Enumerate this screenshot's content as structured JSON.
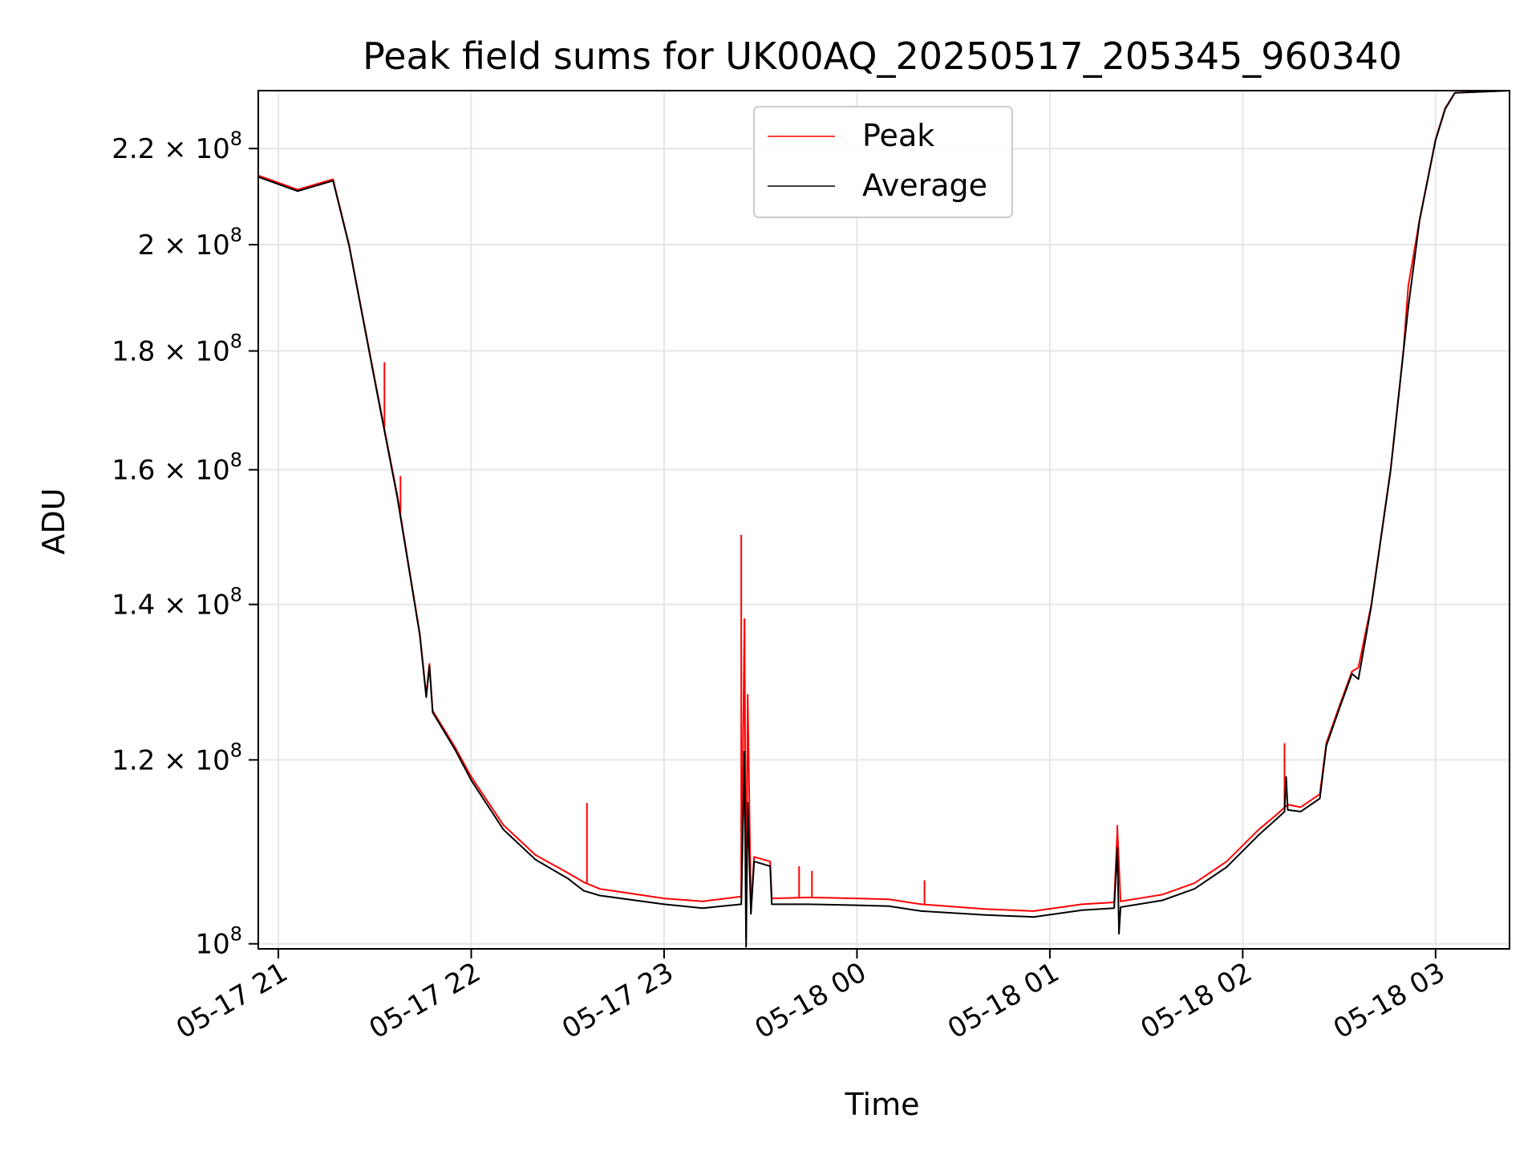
{
  "chart_data": {
    "type": "line",
    "title": "Peak field sums for UK00AQ_20250517_205345_960340",
    "xlabel": "Time",
    "ylabel": "ADU",
    "x_tick_labels": [
      "05-17 21",
      "05-17 22",
      "05-17 23",
      "05-18 00",
      "05-18 01",
      "05-18 02",
      "05-18 03"
    ],
    "x_tick_values": [
      "2025-05-17 21:00",
      "2025-05-17 22:00",
      "2025-05-17 23:00",
      "2025-05-18 00:00",
      "2025-05-18 01:00",
      "2025-05-18 02:00",
      "2025-05-18 03:00"
    ],
    "xlim": [
      "2025-05-17 20:53:45",
      "2025-05-18 03:23:00"
    ],
    "y_scale": "log",
    "ylim": [
      99500000,
      233000000
    ],
    "y_ticks": [
      {
        "value": 100000000,
        "mant": "10",
        "exp": "8"
      },
      {
        "value": 120000000,
        "mant": "1.2 × 10",
        "exp": "8"
      },
      {
        "value": 140000000,
        "mant": "1.4 × 10",
        "exp": "8"
      },
      {
        "value": 160000000,
        "mant": "1.6 × 10",
        "exp": "8"
      },
      {
        "value": 180000000,
        "mant": "1.8 × 10",
        "exp": "8"
      },
      {
        "value": 200000000,
        "mant": "2 × 10",
        "exp": "8"
      },
      {
        "value": 220000000,
        "mant": "2.2 × 10",
        "exp": "8"
      }
    ],
    "grid": true,
    "legend": "upper center",
    "series": [
      {
        "name": "Peak",
        "color": "#ff0000",
        "points": [
          [
            "2025-05-17 20:53:45",
            214200000
          ],
          [
            "2025-05-17 21:06:00",
            211200000
          ],
          [
            "2025-05-17 21:17:00",
            213400000
          ],
          [
            "2025-05-17 21:22:00",
            200000000
          ],
          [
            "2025-05-17 21:30:00",
            175000000
          ],
          [
            "2025-05-17 21:37:00",
            156000000
          ],
          [
            "2025-05-17 21:44:00",
            136000000
          ],
          [
            "2025-05-17 21:46:00",
            128000000
          ],
          [
            "2025-05-17 21:47:00",
            132000000
          ],
          [
            "2025-05-17 21:48:00",
            126000000
          ],
          [
            "2025-05-17 21:55:00",
            121500000
          ],
          [
            "2025-05-17 22:00:00",
            118000000
          ],
          [
            "2025-05-17 22:10:00",
            112500000
          ],
          [
            "2025-05-17 22:20:00",
            109200000
          ],
          [
            "2025-05-17 22:30:00",
            107300000
          ],
          [
            "2025-05-17 22:35:00",
            106300000
          ],
          [
            "2025-05-17 22:40:00",
            105600000
          ],
          [
            "2025-05-17 23:00:00",
            104600000
          ],
          [
            "2025-05-17 23:12:00",
            104300000
          ],
          [
            "2025-05-17 23:24:00",
            104800000
          ],
          [
            "2025-05-17 23:25:00",
            138000000
          ],
          [
            "2025-05-17 23:25:30",
            100500000
          ],
          [
            "2025-05-17 23:26:00",
            128000000
          ],
          [
            "2025-05-17 23:27:00",
            103500000
          ],
          [
            "2025-05-17 23:28:00",
            109000000
          ],
          [
            "2025-05-17 23:33:00",
            108500000
          ],
          [
            "2025-05-17 23:33:30",
            104600000
          ],
          [
            "2025-05-17 23:45:00",
            104700000
          ],
          [
            "2025-05-18 00:00:00",
            104600000
          ],
          [
            "2025-05-18 00:10:00",
            104500000
          ],
          [
            "2025-05-18 00:20:00",
            104000000
          ],
          [
            "2025-05-18 00:40:00",
            103500000
          ],
          [
            "2025-05-18 00:55:00",
            103300000
          ],
          [
            "2025-05-18 01:10:00",
            104000000
          ],
          [
            "2025-05-18 01:20:00",
            104200000
          ],
          [
            "2025-05-18 01:21:00",
            112000000
          ],
          [
            "2025-05-18 01:22:00",
            104300000
          ],
          [
            "2025-05-18 01:35:00",
            105000000
          ],
          [
            "2025-05-18 01:45:00",
            106200000
          ],
          [
            "2025-05-18 01:55:00",
            108500000
          ],
          [
            "2025-05-18 02:05:00",
            112000000
          ],
          [
            "2025-05-18 02:10:00",
            113500000
          ],
          [
            "2025-05-18 02:14:00",
            114800000
          ],
          [
            "2025-05-18 02:18:00",
            114500000
          ],
          [
            "2025-05-18 02:24:00",
            116000000
          ],
          [
            "2025-05-18 02:26:00",
            122000000
          ],
          [
            "2025-05-18 02:30:00",
            126500000
          ],
          [
            "2025-05-18 02:34:00",
            131000000
          ],
          [
            "2025-05-18 02:36:00",
            131500000
          ],
          [
            "2025-05-18 02:40:00",
            140000000
          ],
          [
            "2025-05-18 02:46:00",
            160000000
          ],
          [
            "2025-05-18 02:50:00",
            180000000
          ],
          [
            "2025-05-18 02:51:30",
            192000000
          ],
          [
            "2025-05-18 02:55:00",
            205000000
          ],
          [
            "2025-05-18 03:00:00",
            222000000
          ],
          [
            "2025-05-18 03:03:00",
            229000000
          ],
          [
            "2025-05-18 03:06:00",
            232500000
          ],
          [
            "2025-05-18 03:23:00",
            233000000
          ]
        ],
        "spikes": [
          [
            "2025-05-17 21:33:00",
            178000000
          ],
          [
            "2025-05-17 21:38:00",
            159000000
          ],
          [
            "2025-05-17 22:36:00",
            115000000
          ],
          [
            "2025-05-17 23:24:00",
            150000000
          ],
          [
            "2025-05-17 23:25:00",
            125000000
          ],
          [
            "2025-05-17 23:42:00",
            108000000
          ],
          [
            "2025-05-17 23:46:00",
            107500000
          ],
          [
            "2025-05-18 00:21:00",
            106500000
          ],
          [
            "2025-05-18 01:21:00",
            112500000
          ],
          [
            "2025-05-18 02:13:00",
            122000000
          ]
        ]
      },
      {
        "name": "Average",
        "color": "#000000",
        "points": [
          [
            "2025-05-17 20:53:45",
            213900000
          ],
          [
            "2025-05-17 21:06:00",
            210900000
          ],
          [
            "2025-05-17 21:17:00",
            213100000
          ],
          [
            "2025-05-17 21:22:00",
            199800000
          ],
          [
            "2025-05-17 21:30:00",
            174700000
          ],
          [
            "2025-05-17 21:37:00",
            155700000
          ],
          [
            "2025-05-17 21:44:00",
            135800000
          ],
          [
            "2025-05-17 21:46:00",
            127700000
          ],
          [
            "2025-05-17 21:47:00",
            131700000
          ],
          [
            "2025-05-17 21:48:00",
            125800000
          ],
          [
            "2025-05-17 21:55:00",
            121200000
          ],
          [
            "2025-05-17 22:00:00",
            117600000
          ],
          [
            "2025-05-17 22:10:00",
            112000000
          ],
          [
            "2025-05-17 22:20:00",
            108700000
          ],
          [
            "2025-05-17 22:30:00",
            106700000
          ],
          [
            "2025-05-17 22:35:00",
            105400000
          ],
          [
            "2025-05-17 22:40:00",
            104900000
          ],
          [
            "2025-05-17 23:00:00",
            104000000
          ],
          [
            "2025-05-17 23:12:00",
            103600000
          ],
          [
            "2025-05-17 23:24:00",
            104000000
          ],
          [
            "2025-05-17 23:25:00",
            121000000
          ],
          [
            "2025-05-17 23:25:30",
            99700000
          ],
          [
            "2025-05-17 23:26:00",
            115000000
          ],
          [
            "2025-05-17 23:27:00",
            103000000
          ],
          [
            "2025-05-17 23:28:00",
            108500000
          ],
          [
            "2025-05-17 23:33:00",
            108000000
          ],
          [
            "2025-05-17 23:33:30",
            104000000
          ],
          [
            "2025-05-17 23:45:00",
            104000000
          ],
          [
            "2025-05-18 00:00:00",
            103900000
          ],
          [
            "2025-05-18 00:10:00",
            103800000
          ],
          [
            "2025-05-18 00:20:00",
            103300000
          ],
          [
            "2025-05-18 00:40:00",
            102900000
          ],
          [
            "2025-05-18 00:55:00",
            102700000
          ],
          [
            "2025-05-18 01:10:00",
            103400000
          ],
          [
            "2025-05-18 01:20:00",
            103600000
          ],
          [
            "2025-05-18 01:21:00",
            110000000
          ],
          [
            "2025-05-18 01:21:30",
            101000000
          ],
          [
            "2025-05-18 01:22:00",
            103700000
          ],
          [
            "2025-05-18 01:35:00",
            104400000
          ],
          [
            "2025-05-18 01:45:00",
            105600000
          ],
          [
            "2025-05-18 01:55:00",
            107900000
          ],
          [
            "2025-05-18 02:05:00",
            111400000
          ],
          [
            "2025-05-18 02:10:00",
            113000000
          ],
          [
            "2025-05-18 02:13:00",
            114000000
          ],
          [
            "2025-05-18 02:13:30",
            118000000
          ],
          [
            "2025-05-18 02:14:00",
            114200000
          ],
          [
            "2025-05-18 02:18:00",
            114000000
          ],
          [
            "2025-05-18 02:24:00",
            115500000
          ],
          [
            "2025-05-18 02:26:00",
            121700000
          ],
          [
            "2025-05-18 02:30:00",
            126200000
          ],
          [
            "2025-05-18 02:34:00",
            130700000
          ],
          [
            "2025-05-18 02:36:00",
            130000000
          ],
          [
            "2025-05-18 02:40:00",
            139800000
          ],
          [
            "2025-05-18 02:46:00",
            159800000
          ],
          [
            "2025-05-18 02:50:00",
            179800000
          ],
          [
            "2025-05-18 02:51:30",
            188000000
          ],
          [
            "2025-05-18 02:55:00",
            204800000
          ],
          [
            "2025-05-18 03:00:00",
            221800000
          ],
          [
            "2025-05-18 03:03:00",
            228800000
          ],
          [
            "2025-05-18 03:06:00",
            232500000
          ],
          [
            "2025-05-18 03:23:00",
            233000000
          ]
        ]
      }
    ]
  }
}
